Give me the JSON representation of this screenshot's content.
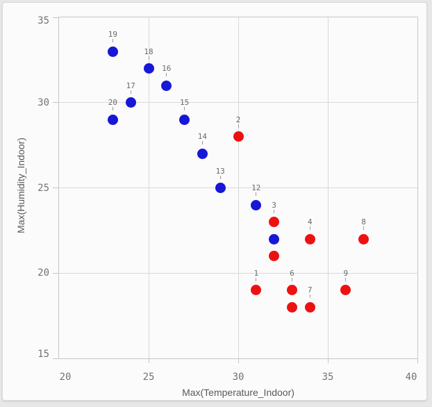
{
  "colors": {
    "page_background": "#e7e7e7",
    "card_background": "#fbfbfb",
    "plot_border": "#c6c6c6",
    "gridline": "#d9d9d9",
    "tick_text": "#737373",
    "axis_title_text": "#595959",
    "point_label_text": "#696969",
    "series_blue": "#1717d8",
    "series_red": "#ee1111"
  },
  "chart_data": {
    "type": "scatter",
    "title": "",
    "xlabel": "Max(Temperature_Indoor)",
    "ylabel": "Max(Humidity_Indoor)",
    "xlim": [
      20,
      40
    ],
    "ylim": [
      15,
      35
    ],
    "x_ticks": [
      20,
      25,
      30,
      35,
      40
    ],
    "y_ticks": [
      15,
      20,
      25,
      30,
      35
    ],
    "grid": true,
    "legend": "none",
    "series": [
      {
        "name": "blue",
        "color": "#1717d8",
        "points": [
          {
            "label": "19",
            "x": 23,
            "y": 33
          },
          {
            "label": "18",
            "x": 25,
            "y": 32
          },
          {
            "label": "16",
            "x": 26,
            "y": 31
          },
          {
            "label": "17",
            "x": 24,
            "y": 30
          },
          {
            "label": "20",
            "x": 23,
            "y": 29
          },
          {
            "label": "15",
            "x": 27,
            "y": 29
          },
          {
            "label": "14",
            "x": 28,
            "y": 27
          },
          {
            "label": "13",
            "x": 29,
            "y": 25
          },
          {
            "label": "12",
            "x": 31,
            "y": 24
          },
          {
            "label": "",
            "x": 32,
            "y": 22
          }
        ]
      },
      {
        "name": "red",
        "color": "#ee1111",
        "points": [
          {
            "label": "2",
            "x": 30,
            "y": 28
          },
          {
            "label": "3",
            "x": 32,
            "y": 23
          },
          {
            "label": "",
            "x": 32,
            "y": 21
          },
          {
            "label": "4",
            "x": 34,
            "y": 22
          },
          {
            "label": "8",
            "x": 37,
            "y": 22
          },
          {
            "label": "1",
            "x": 31,
            "y": 19
          },
          {
            "label": "6",
            "x": 33,
            "y": 19
          },
          {
            "label": "",
            "x": 33,
            "y": 18
          },
          {
            "label": "7",
            "x": 34,
            "y": 18
          },
          {
            "label": "9",
            "x": 36,
            "y": 19
          }
        ]
      }
    ]
  }
}
